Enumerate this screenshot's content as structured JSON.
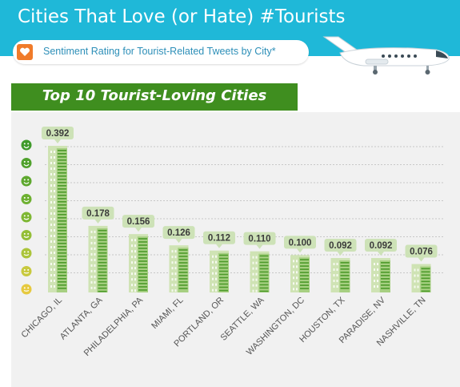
{
  "header": {
    "title": "Cities That Love (or Hate) #Tourists",
    "subtitle": "Sentiment Rating for Tourist-Related Tweets by City*",
    "heart_icon": "heart-icon",
    "airplane_icon": "airplane-icon",
    "header_color": "#1fb8d8"
  },
  "section_title": "Top 10 Tourist-Loving Cities",
  "colors": {
    "bar_light": "#cfe3b4",
    "bar_mid": "#a6cf81",
    "bar_dark": "#4c9a2a",
    "label_box": "#cde2b7",
    "banner": "#3f8e1f"
  },
  "chart_data": {
    "type": "bar",
    "title": "Top 10 Tourist-Loving Cities",
    "categories": [
      "CHICAGO, IL",
      "ATLANTA, GA",
      "PHILADELPHIA, PA",
      "MIAMI, FL",
      "PORTLAND, OR",
      "SEATTLE, WA",
      "WASHINGTON, DC",
      "HOUSTON, TX",
      "PARADISE, NV",
      "NASHVILLE, TN"
    ],
    "values": [
      0.392,
      0.178,
      0.156,
      0.126,
      0.112,
      0.11,
      0.1,
      0.092,
      0.092,
      0.076
    ],
    "value_labels": [
      "0.392",
      "0.178",
      "0.156",
      "0.126",
      "0.112",
      "0.110",
      "0.100",
      "0.092",
      "0.092",
      "0.076"
    ],
    "ylim": [
      0,
      0.42
    ],
    "grid": true,
    "y_axis_icons": "smiley-face-icon scale (green top to yellow bottom)",
    "y_axis_icon_colors": [
      "#3f9a2a",
      "#4fa12c",
      "#5ea82e",
      "#6db030",
      "#7eb733",
      "#93be36",
      "#abc43a",
      "#c8c93e",
      "#e6c93f"
    ]
  }
}
